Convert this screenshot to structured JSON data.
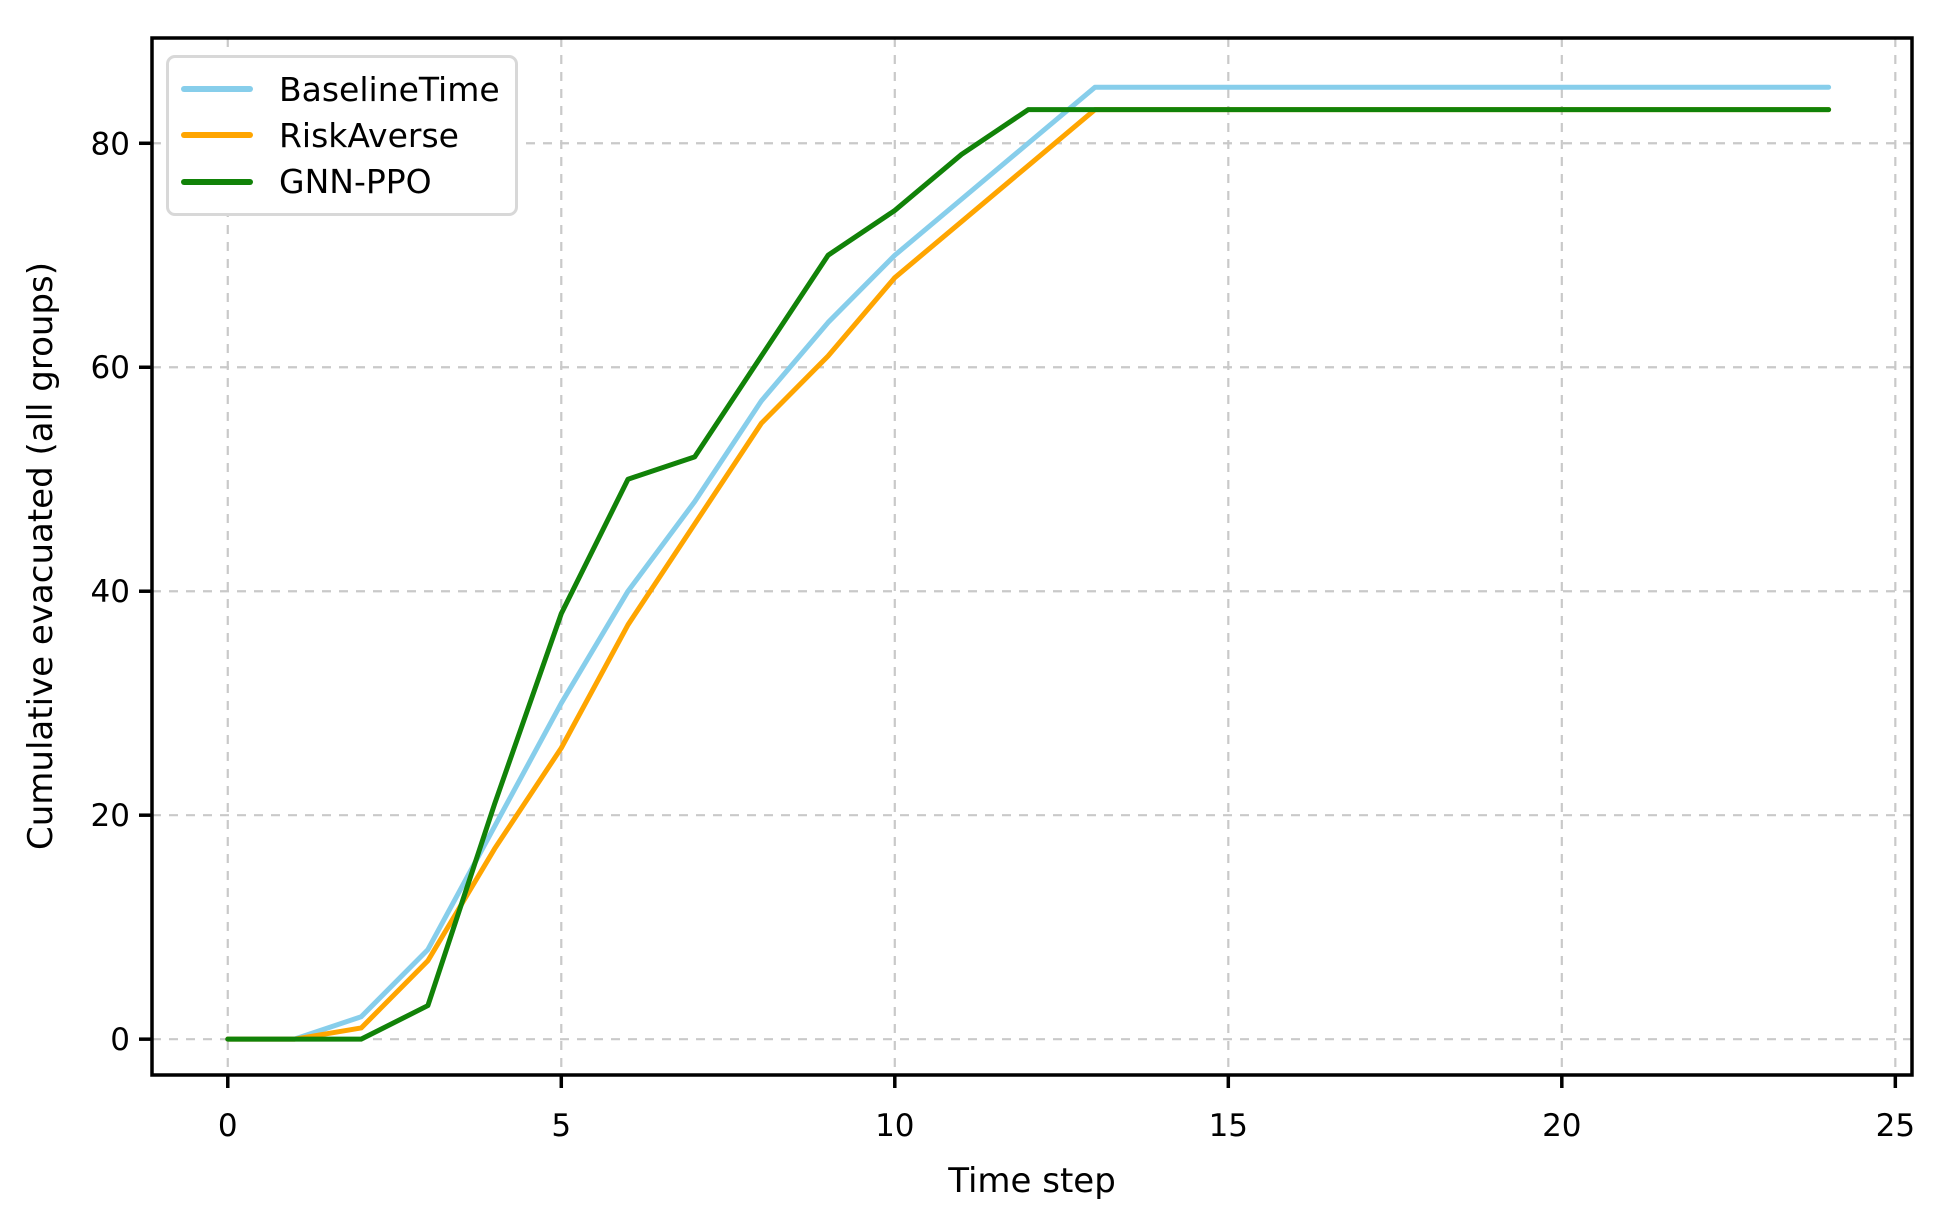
{
  "chart_data": {
    "type": "line",
    "title": "",
    "xlabel": "Time step",
    "ylabel": "Cumulative evacuated (all groups)",
    "x": [
      0,
      1,
      2,
      3,
      4,
      5,
      6,
      7,
      8,
      9,
      10,
      11,
      12,
      13,
      14,
      15,
      16,
      17,
      18,
      19,
      20,
      21,
      22,
      23,
      24
    ],
    "series": [
      {
        "name": "BaselineTime",
        "color": "#87ceeb",
        "values": [
          0,
          0,
          2,
          8,
          19,
          30,
          40,
          48,
          57,
          64,
          70,
          75,
          80,
          85,
          85,
          85,
          85,
          85,
          85,
          85,
          85,
          85,
          85,
          85,
          85
        ]
      },
      {
        "name": "RiskAverse",
        "color": "#ffa500",
        "values": [
          0,
          0,
          1,
          7,
          17,
          26,
          37,
          46,
          55,
          61,
          68,
          73,
          78,
          83,
          83,
          83,
          83,
          83,
          83,
          83,
          83,
          83,
          83,
          83,
          83
        ]
      },
      {
        "name": "GNN-PPO",
        "color": "#118208",
        "values": [
          0,
          0,
          0,
          3,
          21,
          38,
          50,
          52,
          61,
          70,
          74,
          79,
          83,
          83,
          83,
          83,
          83,
          83,
          83,
          83,
          83,
          83,
          83,
          83,
          83
        ]
      }
    ],
    "xticks": [
      0,
      5,
      10,
      15,
      20,
      25
    ],
    "yticks": [
      0,
      20,
      40,
      60,
      80
    ],
    "xlim": [
      -1.136,
      25.25
    ],
    "ylim": [
      -3.2,
      89.4
    ],
    "grid": true,
    "grid_color": "#c9c9c9",
    "spine_color": "#000000",
    "legend_position": "upper left"
  }
}
